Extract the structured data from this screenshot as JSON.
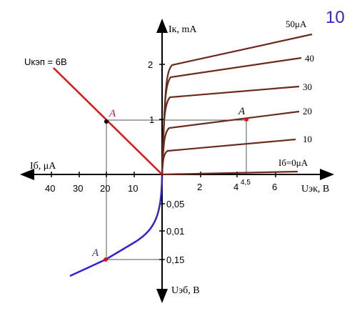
{
  "corner_number": "10",
  "axes": {
    "ik_label": "Iк, mA",
    "uek_label": "Uэк, В",
    "ib_label": "Iб, μA",
    "ueb_label": "Uэб, В"
  },
  "ticks": {
    "right": [
      "2",
      "4",
      "4,5",
      "6"
    ],
    "up": [
      "2",
      "1"
    ],
    "left": [
      "40",
      "30",
      "20",
      "10"
    ],
    "down": [
      "0,05",
      "0,01",
      "0,15"
    ]
  },
  "curve_labels": [
    "50μA",
    "40",
    "30",
    "20",
    "10",
    "Iб=0μA"
  ],
  "load_line_label": "Uкэп = 6В",
  "points": [
    "A",
    "A",
    "A"
  ]
}
